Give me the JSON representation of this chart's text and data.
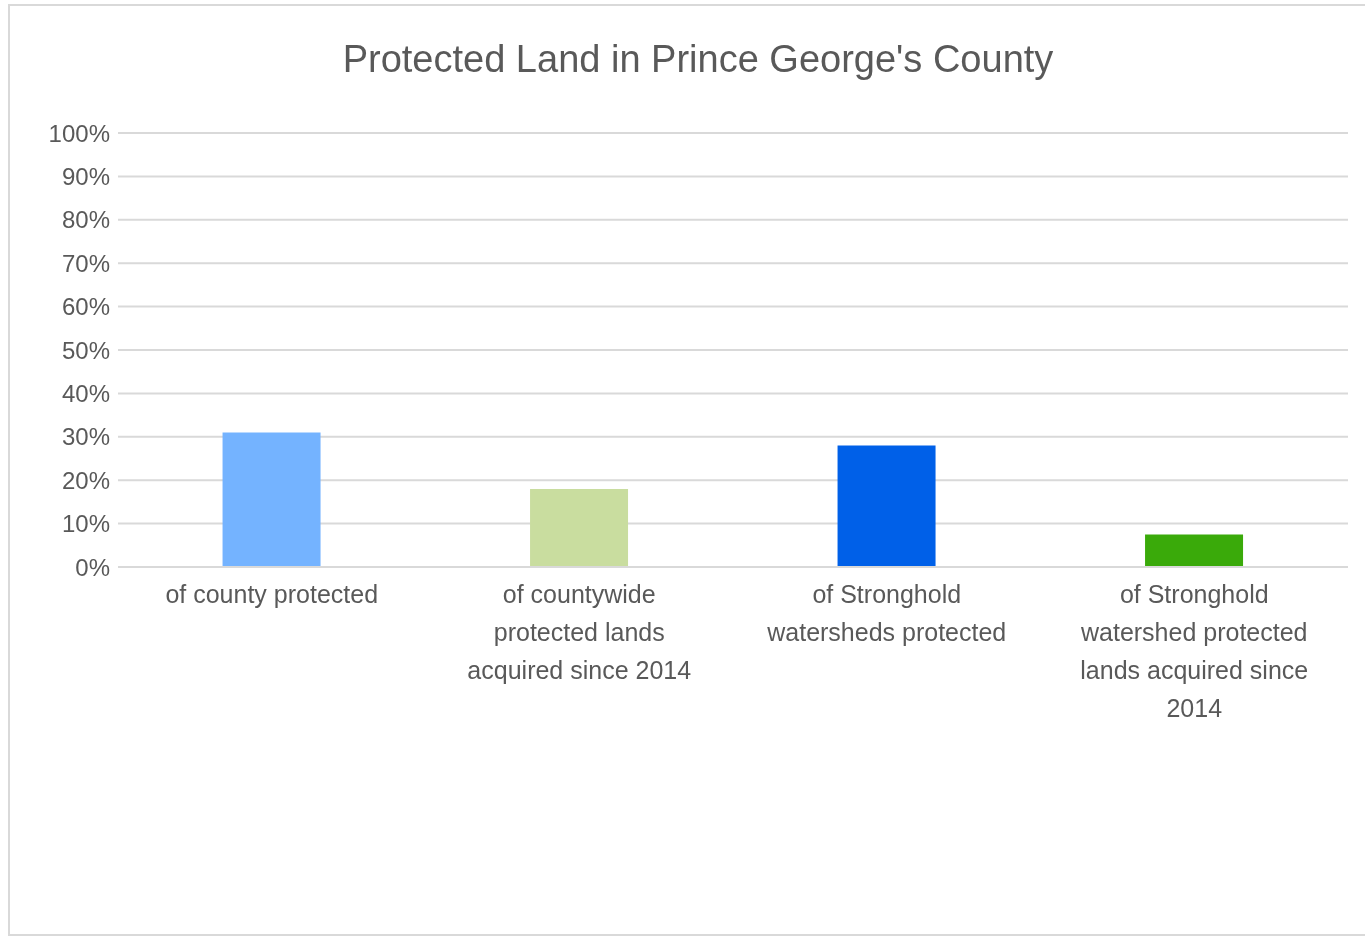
{
  "chart_data": {
    "type": "bar",
    "title": "Protected Land in Prince George's County",
    "categories": [
      "of county protected",
      "of countywide protected lands acquired since 2014",
      "of Stronghold watersheds protected",
      "of Stronghold watershed protected lands acquired since 2014"
    ],
    "values": [
      31,
      18,
      28,
      7.5
    ],
    "colors": [
      "#74b3ff",
      "#c9dd9f",
      "#0060e8",
      "#3aaa0a"
    ],
    "ylim": [
      0,
      100
    ],
    "yticks": [
      {
        "value": 0,
        "label": "0%"
      },
      {
        "value": 10,
        "label": "10%"
      },
      {
        "value": 20,
        "label": "20%"
      },
      {
        "value": 30,
        "label": "30%"
      },
      {
        "value": 40,
        "label": "40%"
      },
      {
        "value": 50,
        "label": "50%"
      },
      {
        "value": 60,
        "label": "60%"
      },
      {
        "value": 70,
        "label": "70%"
      },
      {
        "value": 80,
        "label": "80%"
      },
      {
        "value": 90,
        "label": "90%"
      },
      {
        "value": 100,
        "label": "100%"
      }
    ],
    "grid": "y",
    "legend": false
  }
}
